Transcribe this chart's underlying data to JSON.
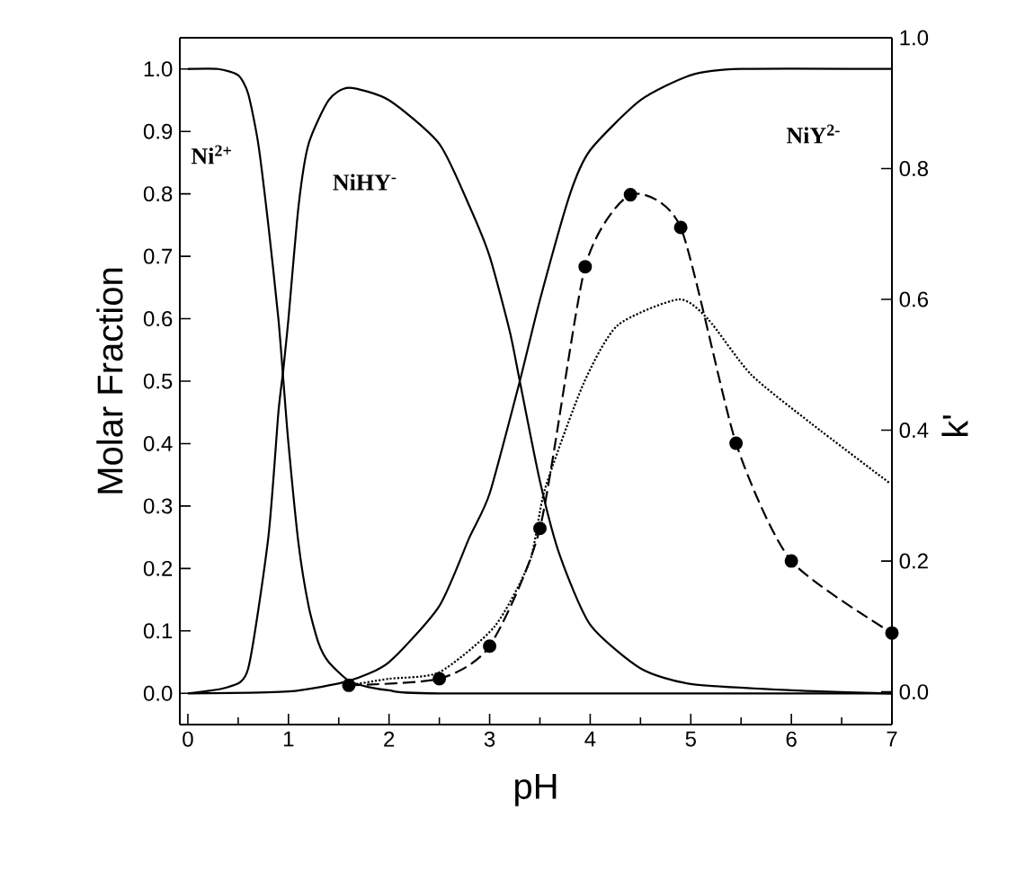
{
  "chart_data": {
    "type": "line",
    "xlabel": "pH",
    "ylabel": "Molar Fraction",
    "y2label": "k'",
    "xlim": [
      -0.08,
      7
    ],
    "xticks": [
      0,
      1,
      2,
      3,
      4,
      5,
      6,
      7
    ],
    "ylim": [
      -0.05,
      1.05
    ],
    "yticks": [
      {
        "value": 0,
        "label": "0.0"
      },
      0.1,
      0.2,
      0.3,
      0.4,
      0.5,
      0.6,
      0.7,
      0.8,
      0.9,
      {
        "value": 1,
        "label": "1.0"
      }
    ],
    "y2lim": [
      -0.05,
      1.0
    ],
    "y2ticks": [
      {
        "value": 0,
        "label": "0.0"
      },
      0.2,
      0.4,
      0.6,
      0.8,
      {
        "value": 1,
        "label": "1.0"
      }
    ],
    "series": [
      {
        "color": "#000000",
        "line_style": "solid",
        "marker": "none",
        "x": [
          0,
          0.3,
          0.5,
          0.6,
          0.7,
          0.8,
          0.9,
          0.95,
          1.0,
          1.1,
          1.2,
          1.3,
          1.4,
          1.6,
          1.8,
          2.0,
          2.5,
          7
        ],
        "values": [
          1.0,
          1.0,
          0.99,
          0.96,
          0.88,
          0.75,
          0.6,
          0.5,
          0.4,
          0.24,
          0.14,
          0.08,
          0.05,
          0.02,
          0.01,
          0.005,
          0,
          0
        ]
      },
      {
        "color": "#000000",
        "line_style": "solid",
        "marker": "none",
        "x": [
          0,
          0.4,
          0.6,
          0.8,
          0.9,
          0.95,
          1.0,
          1.1,
          1.2,
          1.4,
          1.6,
          2.0,
          2.5,
          2.8,
          3.0,
          3.2,
          3.3,
          3.5,
          3.7,
          4.0,
          4.5,
          5.0,
          6.0,
          7.0
        ],
        "values": [
          0,
          0.01,
          0.04,
          0.25,
          0.45,
          0.52,
          0.6,
          0.78,
          0.88,
          0.95,
          0.97,
          0.95,
          0.88,
          0.78,
          0.7,
          0.58,
          0.5,
          0.34,
          0.22,
          0.11,
          0.04,
          0.015,
          0.005,
          0
        ]
      },
      {
        "color": "#000000",
        "line_style": "solid",
        "marker": "none",
        "x": [
          0,
          1.0,
          1.6,
          2.0,
          2.5,
          2.8,
          3.0,
          3.3,
          3.5,
          3.8,
          4.0,
          4.5,
          5.0,
          5.5,
          7.0
        ],
        "values": [
          0,
          0.003,
          0.02,
          0.05,
          0.14,
          0.25,
          0.32,
          0.5,
          0.63,
          0.8,
          0.87,
          0.95,
          0.99,
          1.0,
          1.0
        ]
      },
      {
        "color": "#000000",
        "axis": "y2",
        "line_style": "dashed",
        "marker": "circle",
        "x": [
          1.6,
          2.5,
          3.0,
          3.5,
          3.95,
          4.4,
          4.9,
          5.45,
          6.0,
          7.0
        ],
        "values": [
          0.01,
          0.02,
          0.07,
          0.25,
          0.65,
          0.76,
          0.71,
          0.38,
          0.2,
          0.09
        ]
      },
      {
        "color": "#000000",
        "axis": "y2",
        "line_style": "dotted",
        "marker": "none",
        "x": [
          1.6,
          2.0,
          2.5,
          3.05,
          3.4,
          3.55,
          3.93,
          4.27,
          4.88,
          5.17,
          5.6,
          6.2,
          6.97
        ],
        "values": [
          0.01,
          0.02,
          0.03,
          0.1,
          0.2,
          0.31,
          0.47,
          0.56,
          0.6,
          0.57,
          0.485,
          0.41,
          0.32
        ]
      }
    ],
    "annotations": [
      "Ni$^{2+}$",
      "NiHY$^{-}$",
      "NiY$^{2-}$"
    ]
  }
}
